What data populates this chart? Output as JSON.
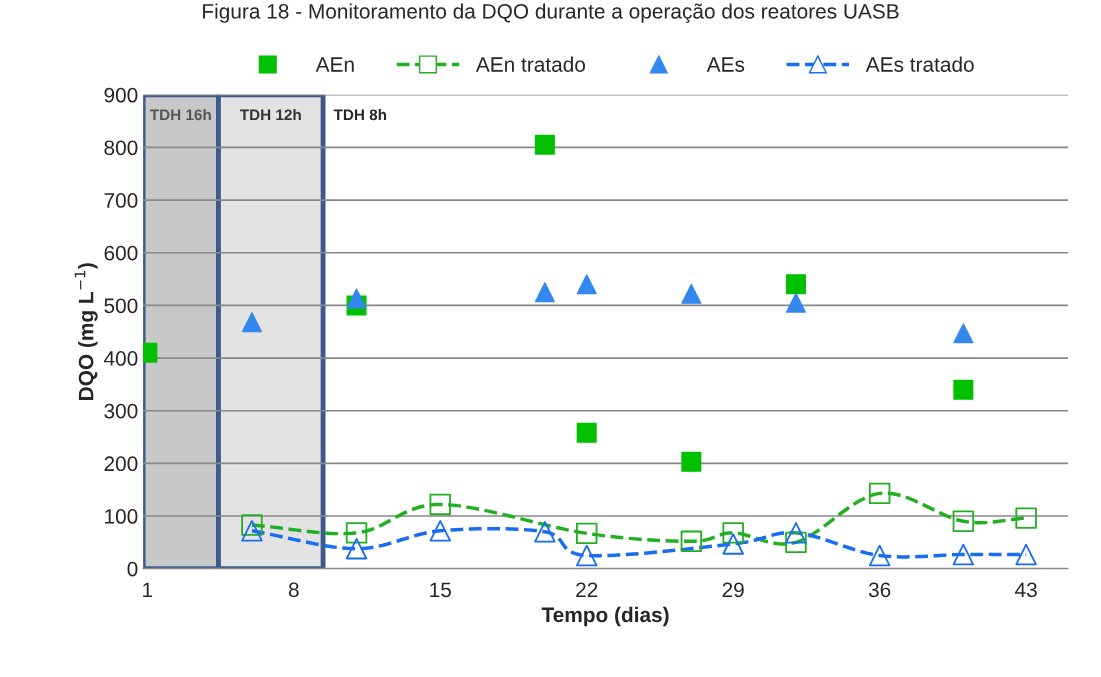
{
  "chart_data": {
    "type": "scatter",
    "title": "Figura 18 - Monitoramento da DQO durante a operação dos reatores UASB",
    "xlabel": "Tempo (dias)",
    "ylabel": "DQO (mg L$^{−1}$)",
    "series": [
      {
        "name": "AEn",
        "marker": "square",
        "color": "#00c000",
        "x": [
          1,
          11,
          20,
          22,
          27,
          32,
          40
        ],
        "values": [
          410,
          500,
          805,
          258,
          203,
          540,
          340
        ]
      },
      {
        "name": "AEn tratado",
        "type": "line",
        "marker": "square",
        "line_style": "dashed",
        "color": "#22b022",
        "x": [
          6,
          11,
          15,
          22,
          27,
          29,
          32,
          36,
          40,
          43
        ],
        "values": [
          83,
          68,
          122,
          67,
          52,
          68,
          50,
          143,
          90,
          96
        ]
      },
      {
        "name": "AEs",
        "marker": "triangle",
        "color": "#3388ee",
        "x": [
          6,
          11,
          20,
          22,
          27,
          32,
          40
        ],
        "values": [
          468,
          513,
          525,
          540,
          522,
          505,
          447
        ]
      },
      {
        "name": "AEs tratado",
        "type": "line",
        "marker": "triangle",
        "line_style": "dashed",
        "color": "#1a6cf0",
        "x": [
          6,
          11,
          15,
          20,
          22,
          29,
          32,
          36,
          40,
          43
        ],
        "values": [
          72,
          38,
          72,
          70,
          25,
          47,
          68,
          25,
          27,
          27
        ]
      }
    ],
    "bands": [
      {
        "axis": "x",
        "from": 0.8,
        "to": 4.4,
        "label": "TDH 16h",
        "color": "#c8c8c8"
      },
      {
        "axis": "x",
        "from": 4.4,
        "to": 9.4,
        "label": "TDH 12h",
        "color": "#e3e3e3"
      }
    ],
    "annotations": [
      "TDH 8h"
    ],
    "xlim": [
      0.8,
      45
    ],
    "xticks": [
      1,
      8,
      15,
      22,
      29,
      36,
      43
    ],
    "ylim": [
      0,
      900
    ],
    "yticks": [
      0,
      100,
      200,
      300,
      400,
      500,
      600,
      700,
      800,
      900
    ],
    "grid": "y",
    "legend": "top"
  }
}
